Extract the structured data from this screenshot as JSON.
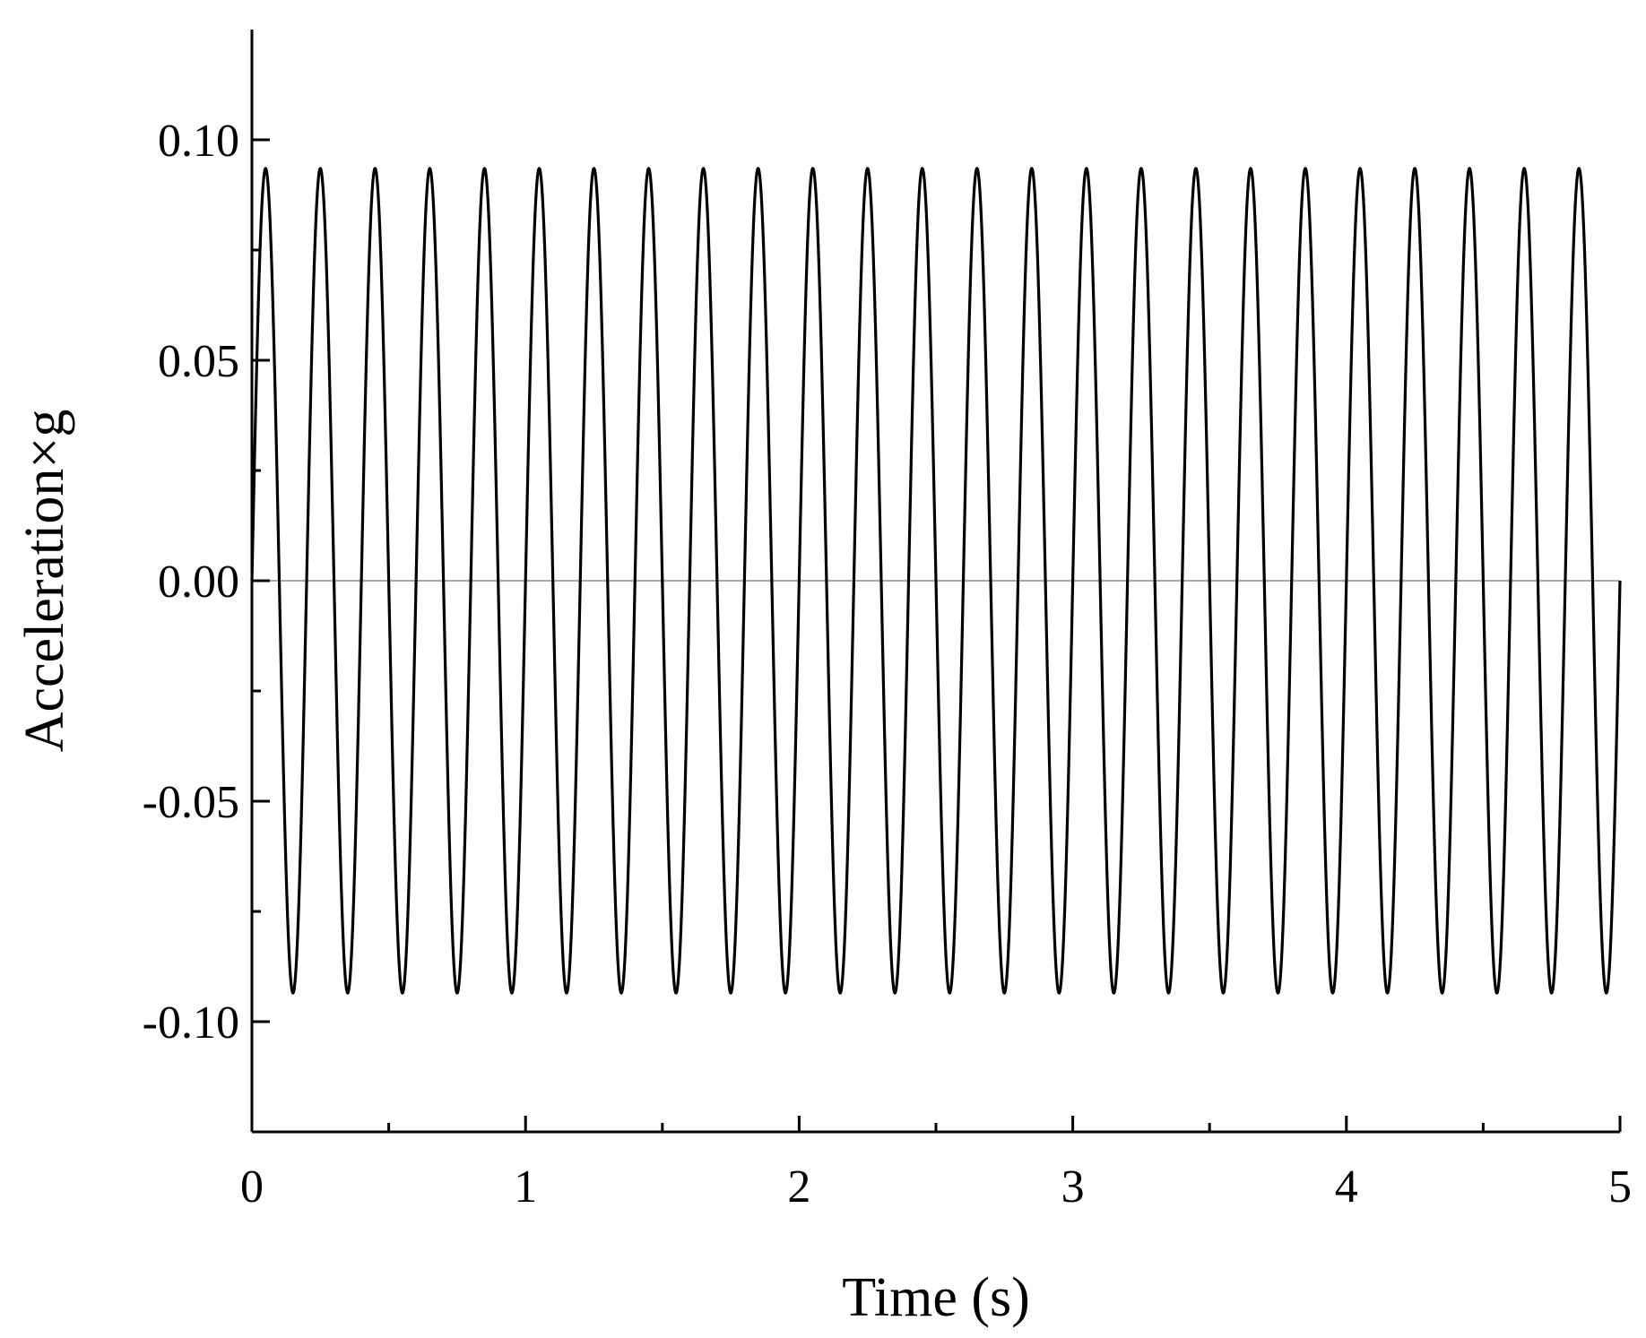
{
  "chart_data": {
    "type": "line",
    "title": "",
    "xlabel": "Time (s)",
    "ylabel": "Acceleration×g",
    "xlim": [
      0,
      5
    ],
    "ylim": [
      -0.125,
      0.125
    ],
    "x_ticks": [
      0,
      1,
      2,
      3,
      4,
      5
    ],
    "x_tick_labels": [
      "0",
      "1",
      "2",
      "3",
      "4",
      "5"
    ],
    "x_minor_ticks": [
      0.5,
      1.5,
      2.5,
      3.5,
      4.5
    ],
    "y_ticks": [
      0.1,
      0.05,
      0.0,
      -0.05,
      -0.1
    ],
    "y_tick_labels": [
      "0.10",
      "0.05",
      "0.00",
      "-0.05",
      "-0.10"
    ],
    "y_minor_ticks": [
      0.075,
      0.025,
      -0.025,
      -0.075
    ],
    "grid": false,
    "zero_line": true,
    "series": [
      {
        "color": "#000000",
        "frequency_hz": 5,
        "amplitude": 0.0935,
        "x_range": [
          0,
          5
        ]
      }
    ],
    "colors": {
      "line": "#000000",
      "axis": "#000000",
      "zero_line": "#aaaaaa"
    }
  }
}
